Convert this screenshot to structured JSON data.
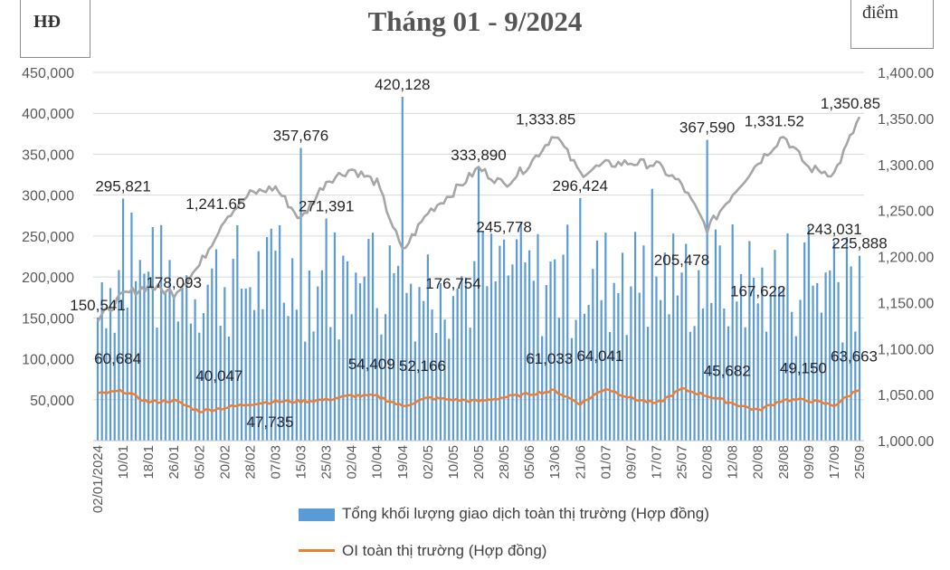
{
  "chart_data": {
    "type": "bar+line",
    "title": "Tháng 01 - 9/2024",
    "y_left_unit": "HĐ",
    "y_right_unit": "điểm",
    "y_left": {
      "range": [
        0,
        450000
      ],
      "ticks": [
        "50,000",
        "100,000",
        "150,000",
        "200,000",
        "250,000",
        "300,000",
        "350,000",
        "400,000",
        "450,000"
      ]
    },
    "y_right": {
      "range": [
        1000,
        1400
      ],
      "ticks": [
        "1,000.00",
        "1,050.00",
        "1,100.00",
        "1,150.00",
        "1,200.00",
        "1,250.00",
        "1,300.00",
        "1,350.00",
        "1,400.00"
      ]
    },
    "x_ticks": [
      "02/01/2024",
      "10/01",
      "18/01",
      "26/01",
      "05/02",
      "20/02",
      "28/02",
      "07/03",
      "15/03",
      "25/03",
      "02/04",
      "10/04",
      "19/04",
      "02/05",
      "10/05",
      "20/05",
      "28/05",
      "05/06",
      "13/06",
      "21/06",
      "01/07",
      "09/07",
      "17/07",
      "25/07",
      "02/08",
      "12/08",
      "20/08",
      "28/08",
      "09/09",
      "17/09",
      "25/09"
    ],
    "grid": true,
    "legend_position": "bottom",
    "series": [
      {
        "name": "Tổng khối lượng giao dịch toàn thị trường (Hợp đồng)",
        "kind": "bar",
        "axis": "left",
        "color": "#5b9bd5"
      },
      {
        "name": "OI toàn thị trường (Hợp đồng)",
        "kind": "line",
        "axis": "left",
        "color": "#ed7d31"
      },
      {
        "name": "",
        "kind": "line",
        "axis": "right",
        "color": "#a6a6a6"
      }
    ],
    "volume_keypoints": [
      {
        "x": "02/01/2024",
        "y": 150541
      },
      {
        "x": "10/01",
        "y": 295821
      },
      {
        "x": "26/01",
        "y": 178093
      },
      {
        "x": "15/03",
        "y": 357676
      },
      {
        "x": "25/03",
        "y": 271391
      },
      {
        "x": "19/04",
        "y": 420128
      },
      {
        "x": "10/05",
        "y": 176754
      },
      {
        "x": "20/05",
        "y": 333890
      },
      {
        "x": "28/05",
        "y": 245778
      },
      {
        "x": "21/06",
        "y": 296424
      },
      {
        "x": "25/07",
        "y": 205478
      },
      {
        "x": "02/08",
        "y": 367590
      },
      {
        "x": "20/08",
        "y": 167622
      },
      {
        "x": "17/09",
        "y": 243031
      },
      {
        "x": "25/09",
        "y": 225888
      }
    ],
    "index_keypoints": [
      {
        "x": "02/01/2024",
        "y": 1130
      },
      {
        "x": "10/01",
        "y": 1158
      },
      {
        "x": "18/01",
        "y": 1168
      },
      {
        "x": "26/01",
        "y": 1160
      },
      {
        "x": "05/02",
        "y": 1190
      },
      {
        "x": "20/02",
        "y": 1241.65
      },
      {
        "x": "28/02",
        "y": 1268
      },
      {
        "x": "07/03",
        "y": 1275
      },
      {
        "x": "15/03",
        "y": 1240
      },
      {
        "x": "25/03",
        "y": 1282
      },
      {
        "x": "02/04",
        "y": 1295
      },
      {
        "x": "10/04",
        "y": 1280
      },
      {
        "x": "19/04",
        "y": 1205
      },
      {
        "x": "02/05",
        "y": 1248
      },
      {
        "x": "10/05",
        "y": 1270
      },
      {
        "x": "20/05",
        "y": 1296
      },
      {
        "x": "28/05",
        "y": 1278
      },
      {
        "x": "05/06",
        "y": 1300
      },
      {
        "x": "13/06",
        "y": 1333.85
      },
      {
        "x": "21/06",
        "y": 1290
      },
      {
        "x": "01/07",
        "y": 1300
      },
      {
        "x": "09/07",
        "y": 1302
      },
      {
        "x": "17/07",
        "y": 1300
      },
      {
        "x": "25/07",
        "y": 1278
      },
      {
        "x": "02/08",
        "y": 1230
      },
      {
        "x": "12/08",
        "y": 1268
      },
      {
        "x": "20/08",
        "y": 1302
      },
      {
        "x": "28/08",
        "y": 1331.52
      },
      {
        "x": "09/09",
        "y": 1296
      },
      {
        "x": "17/09",
        "y": 1290
      },
      {
        "x": "25/09",
        "y": 1350.85
      }
    ],
    "oi_keypoints": [
      {
        "x": "02/01/2024",
        "y": 57000
      },
      {
        "x": "10/01",
        "y": 60684
      },
      {
        "x": "18/01",
        "y": 47000
      },
      {
        "x": "26/01",
        "y": 49000
      },
      {
        "x": "05/02",
        "y": 36000
      },
      {
        "x": "20/02",
        "y": 40047
      },
      {
        "x": "28/02",
        "y": 45000
      },
      {
        "x": "07/03",
        "y": 47735
      },
      {
        "x": "15/03",
        "y": 48000
      },
      {
        "x": "25/03",
        "y": 50000
      },
      {
        "x": "02/04",
        "y": 55000
      },
      {
        "x": "10/04",
        "y": 54409
      },
      {
        "x": "19/04",
        "y": 42000
      },
      {
        "x": "02/05",
        "y": 52166
      },
      {
        "x": "10/05",
        "y": 50000
      },
      {
        "x": "20/05",
        "y": 48000
      },
      {
        "x": "28/05",
        "y": 53000
      },
      {
        "x": "05/06",
        "y": 57000
      },
      {
        "x": "13/06",
        "y": 61033
      },
      {
        "x": "21/06",
        "y": 45000
      },
      {
        "x": "01/07",
        "y": 64041
      },
      {
        "x": "09/07",
        "y": 52000
      },
      {
        "x": "17/07",
        "y": 45000
      },
      {
        "x": "25/07",
        "y": 63000
      },
      {
        "x": "02/08",
        "y": 55000
      },
      {
        "x": "12/08",
        "y": 45682
      },
      {
        "x": "20/08",
        "y": 37000
      },
      {
        "x": "28/08",
        "y": 50000
      },
      {
        "x": "09/09",
        "y": 49150
      },
      {
        "x": "17/09",
        "y": 43000
      },
      {
        "x": "25/09",
        "y": 63663
      }
    ],
    "data_labels": {
      "volume": [
        "150,541",
        "295,821",
        "178,093",
        "357,676",
        "271,391",
        "420,128",
        "176,754",
        "333,890",
        "245,778",
        "296,424",
        "205,478",
        "367,590",
        "167,622",
        "243,031",
        "225,888"
      ],
      "index": [
        "1,241.65",
        "1,333.85",
        "1,331.52",
        "1,350.85"
      ],
      "oi": [
        "60,684",
        "40,047",
        "47,735",
        "54,409",
        "52,166",
        "61,033",
        "64,041",
        "45,682",
        "49,150",
        "63,663"
      ]
    }
  }
}
